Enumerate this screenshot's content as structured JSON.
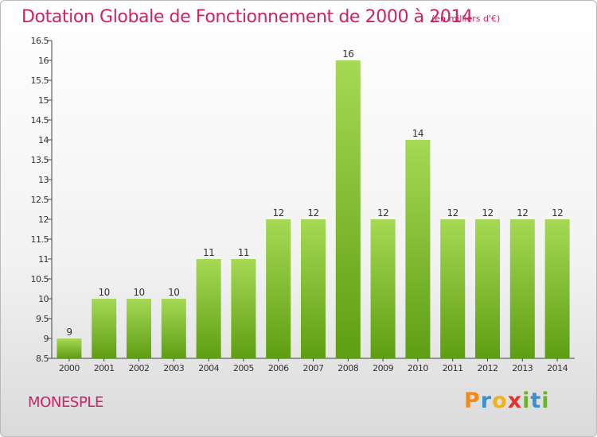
{
  "title": "Dotation Globale de Fonctionnement de 2000 à 2014",
  "subtitle": "(en milliers d'€)",
  "commune": "MONESPLE",
  "logo": "Proxiti",
  "colors": {
    "title": "#cc2266",
    "bar_top": "#a6d955",
    "bar_bottom": "#5e9e12"
  },
  "chart_data": {
    "type": "bar",
    "categories": [
      "2000",
      "2001",
      "2002",
      "2003",
      "2004",
      "2005",
      "2006",
      "2007",
      "2008",
      "2009",
      "2010",
      "2011",
      "2012",
      "2013",
      "2014"
    ],
    "values": [
      9,
      10,
      10,
      10,
      11,
      11,
      12,
      12,
      16,
      12,
      14,
      12,
      12,
      12,
      12
    ],
    "data_labels": [
      "9",
      "10",
      "10",
      "10",
      "11",
      "11",
      "12",
      "12",
      "16",
      "12",
      "14",
      "12",
      "12",
      "12",
      "12"
    ],
    "ylim": [
      8.5,
      16.5
    ],
    "yticks": [
      8.5,
      9,
      9.5,
      10,
      10.5,
      11,
      11.5,
      12,
      12.5,
      13,
      13.5,
      14,
      14.5,
      15,
      15.5,
      16,
      16.5
    ],
    "ytick_labels": [
      "8.5",
      "9",
      "9.5",
      "10",
      "10.5",
      "11",
      "11.5",
      "12",
      "12.5",
      "13",
      "13.5",
      "14",
      "14.5",
      "15",
      "15.5",
      "16",
      "16.5"
    ],
    "grid": false,
    "legend": "none"
  }
}
